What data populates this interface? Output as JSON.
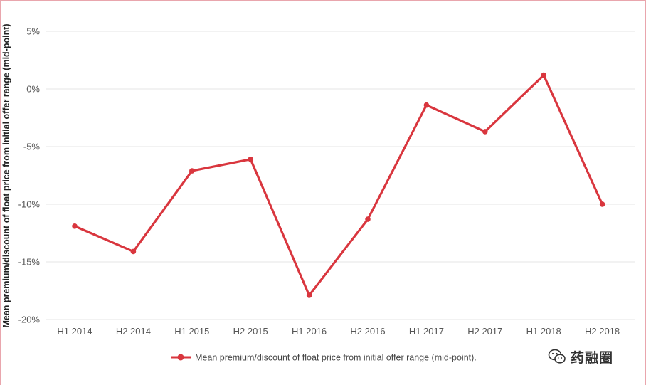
{
  "colors": {
    "series": "#d9363e",
    "grid": "#e6e6e6",
    "frame": "#e9a6ad"
  },
  "chart_data": {
    "type": "line",
    "categories": [
      "H1 2014",
      "H2 2014",
      "H1 2015",
      "H2 2015",
      "H1 2016",
      "H2 2016",
      "H1 2017",
      "H2 2017",
      "H1 2018",
      "H2 2018"
    ],
    "series": [
      {
        "name": "Mean premium/discount of float price from initial offer range (mid-point).",
        "values": [
          -11.9,
          -14.1,
          -7.1,
          -6.1,
          -17.9,
          -11.3,
          -1.4,
          -3.7,
          1.2,
          -10.0
        ]
      }
    ],
    "ylabel": "Mean premium/discount of float price from initial offer range (mid-point)",
    "xlabel": "",
    "ylim": [
      -20,
      5
    ],
    "yticks": [
      5,
      0,
      -5,
      -10,
      -15,
      -20
    ],
    "ytick_labels": [
      "5%",
      "0%",
      "-5%",
      "-10%",
      "-15%",
      "-20%"
    ],
    "grid": true,
    "legend": "bottom-center"
  },
  "watermark": {
    "icon": "wechat-icon",
    "text": "药融圈"
  }
}
